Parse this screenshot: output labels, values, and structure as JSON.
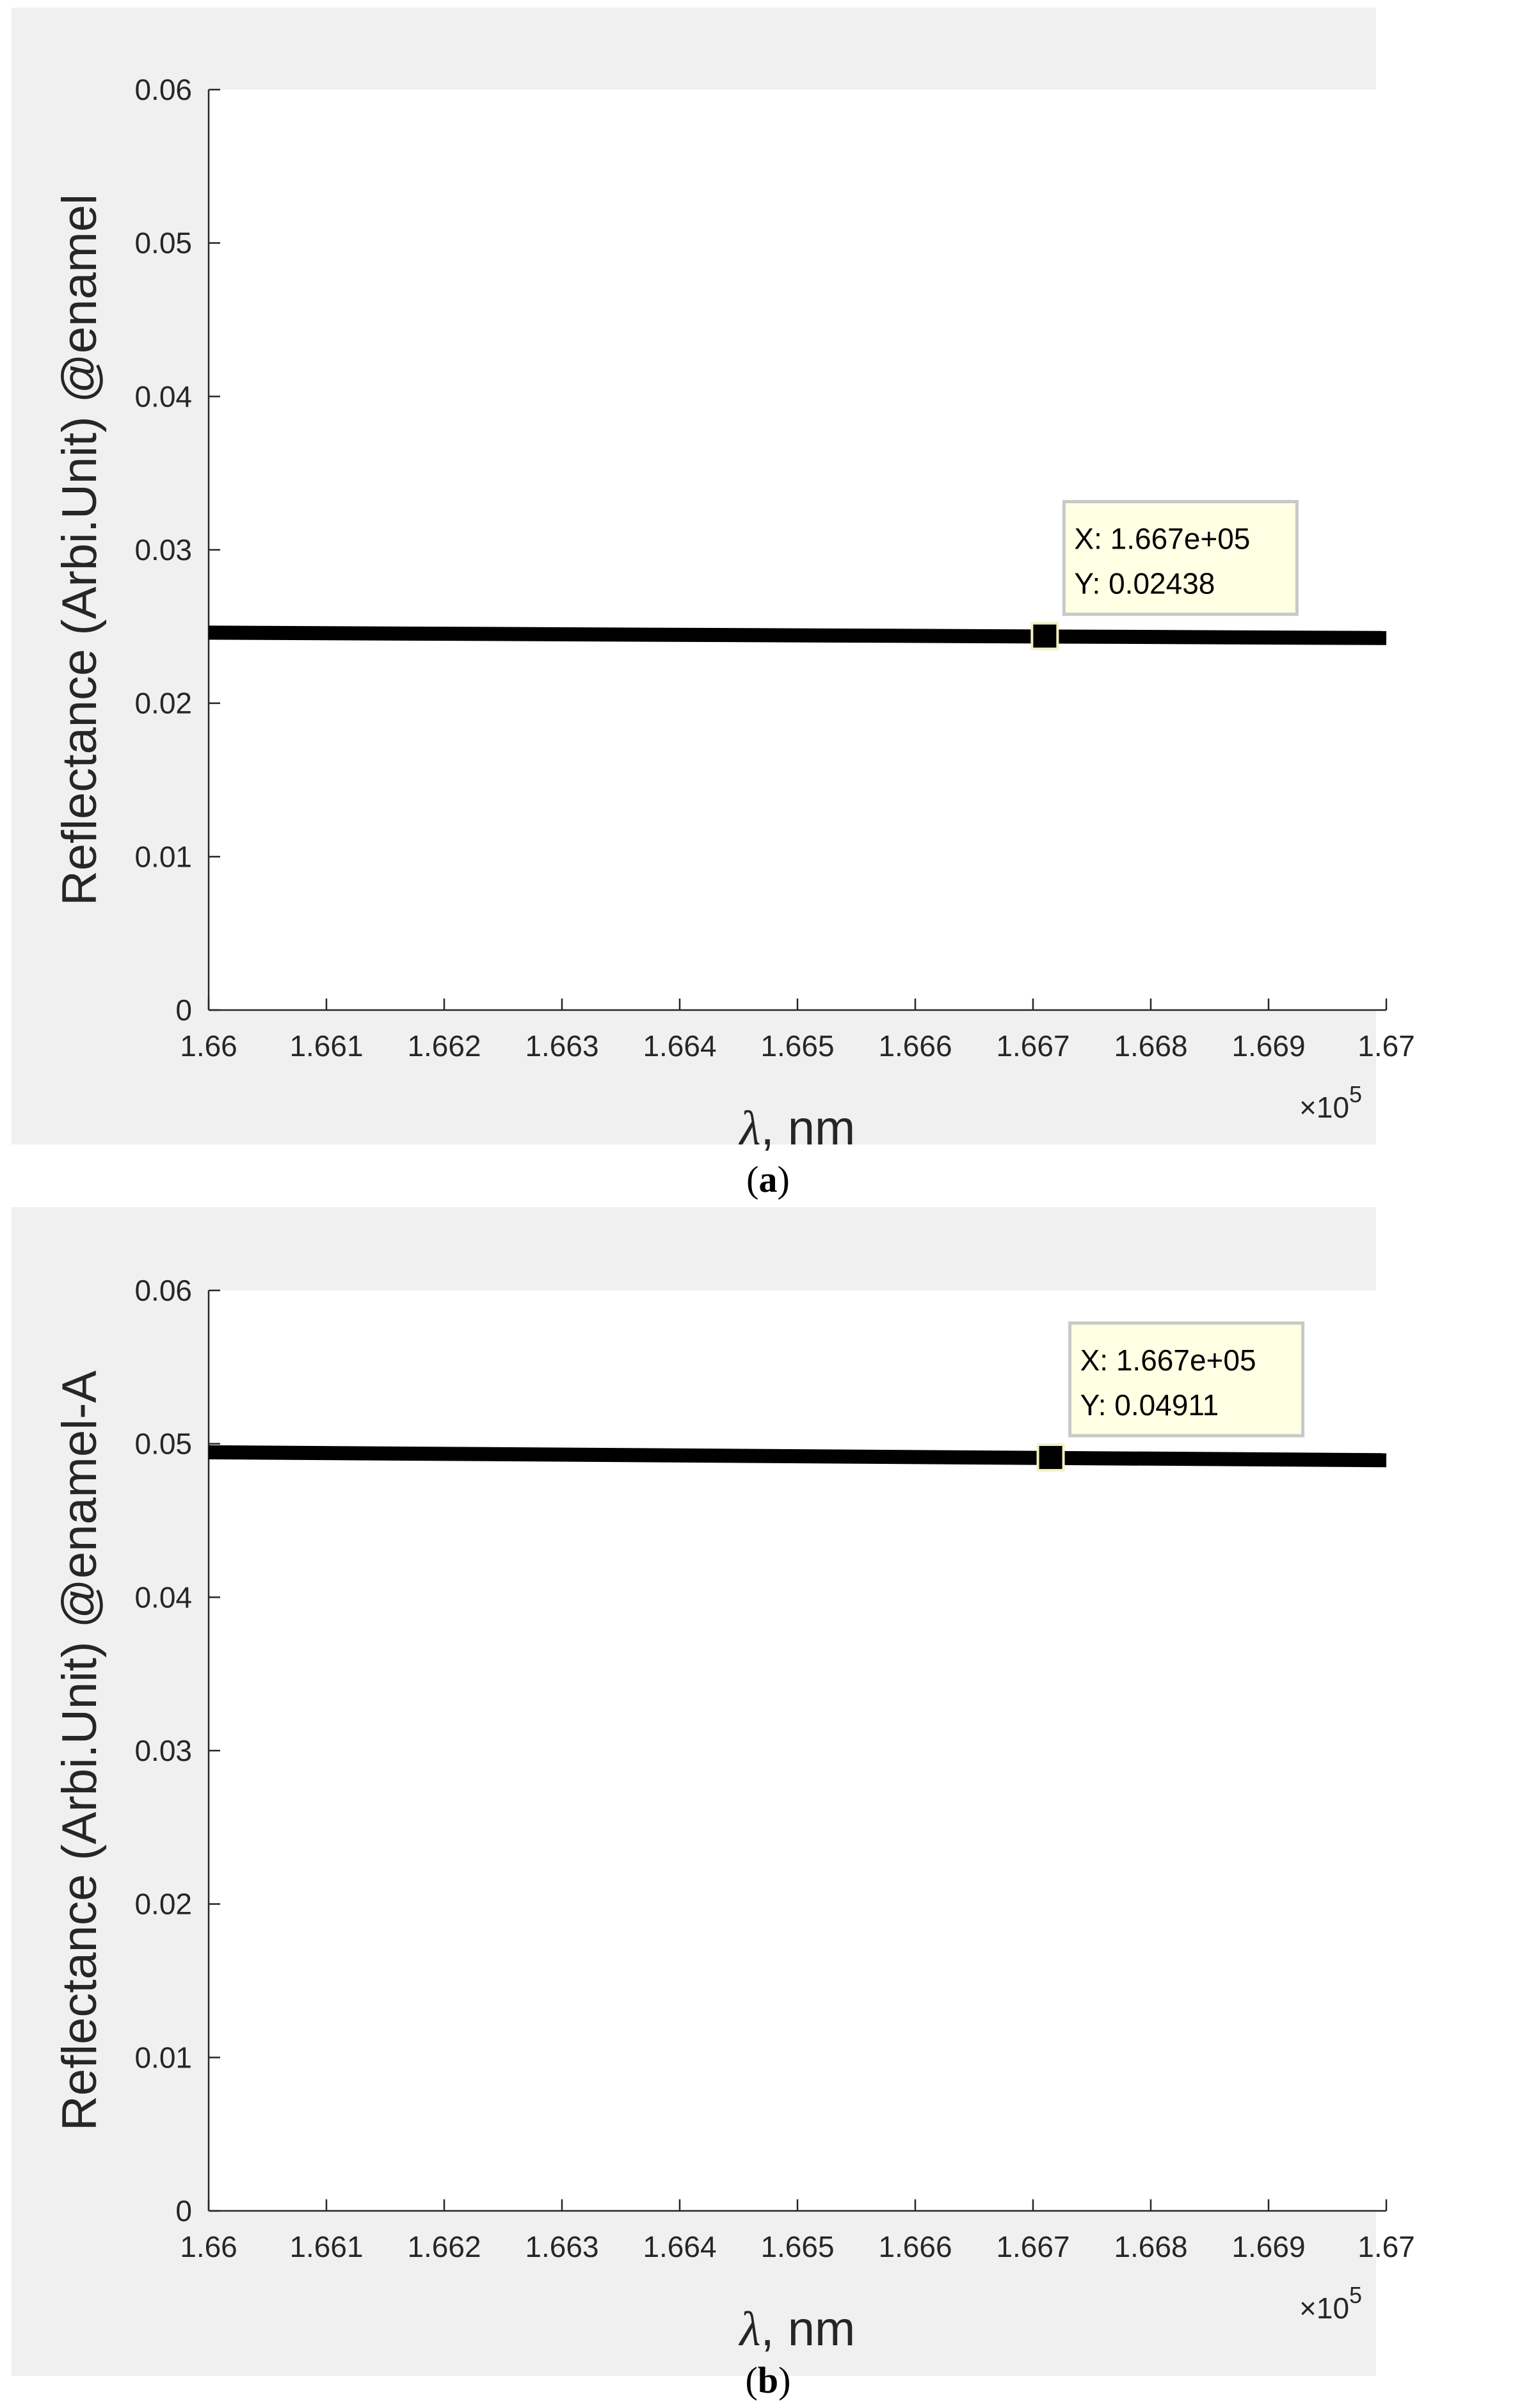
{
  "chart_data": [
    {
      "type": "line",
      "caption_letter": "a",
      "xlabel_symbol": "λ",
      "xlabel_rest": ", nm",
      "ylabel": "Reflectance (Arbi.Unit) @enamel",
      "x_exponent_base": "×10",
      "x_exponent_power": "5",
      "xlim": [
        1.66,
        1.67
      ],
      "ylim": [
        0,
        0.06
      ],
      "x_ticks": [
        "1.66",
        "1.661",
        "1.662",
        "1.663",
        "1.664",
        "1.665",
        "1.666",
        "1.667",
        "1.668",
        "1.669",
        "1.67"
      ],
      "y_ticks": [
        "0",
        "0.01",
        "0.02",
        "0.03",
        "0.04",
        "0.05",
        "0.06"
      ],
      "series": [
        {
          "x": [
            1.66,
            1.67
          ],
          "y": [
            0.0246,
            0.02425
          ]
        }
      ],
      "datatip": {
        "x": 1.6671,
        "y": 0.02438,
        "x_text": "X: 1.667e+05",
        "y_text": "Y: 0.02438"
      },
      "line_color": "#000000",
      "grid": false
    },
    {
      "type": "line",
      "caption_letter": "b",
      "xlabel_symbol": "λ",
      "xlabel_rest": ", nm",
      "ylabel": "Reflectance (Arbi.Unit) @enamel-A",
      "x_exponent_base": "×10",
      "x_exponent_power": "5",
      "xlim": [
        1.66,
        1.67
      ],
      "ylim": [
        0,
        0.06
      ],
      "x_ticks": [
        "1.66",
        "1.661",
        "1.662",
        "1.663",
        "1.664",
        "1.665",
        "1.666",
        "1.667",
        "1.668",
        "1.669",
        "1.67"
      ],
      "y_ticks": [
        "0",
        "0.01",
        "0.02",
        "0.03",
        "0.04",
        "0.05",
        "0.06"
      ],
      "series": [
        {
          "x": [
            1.66,
            1.67
          ],
          "y": [
            0.04945,
            0.04893
          ]
        }
      ],
      "datatip": {
        "x": 1.66715,
        "y": 0.04911,
        "x_text": "X: 1.667e+05",
        "y_text": "Y: 0.04911"
      },
      "line_color": "#000000",
      "grid": false
    }
  ]
}
